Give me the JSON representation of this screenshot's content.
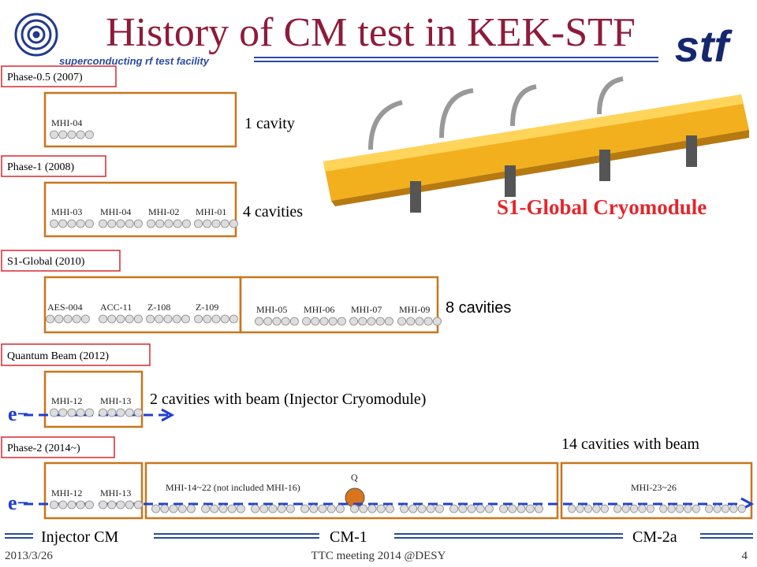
{
  "header": {
    "title": "History of CM test in KEK-STF",
    "subtitle": "superconducting rf test facility",
    "logo_text": "stf"
  },
  "phases": [
    {
      "label": "Phase-0.5 (2007)",
      "cavities": [
        "MHI-04"
      ],
      "note": "1 cavity"
    },
    {
      "label": "Phase-1 (2008)",
      "cavities": [
        "MHI-03",
        "MHI-04",
        "MHI-02",
        "MHI-01"
      ],
      "note": "4 cavities"
    },
    {
      "label": "S1-Global (2010)",
      "cavities": [
        "AES-004",
        "ACC-11",
        "Z-108",
        "Z-109",
        "MHI-05",
        "MHI-06",
        "MHI-07",
        "MHI-09"
      ],
      "note": "8 cavities"
    },
    {
      "label": "Quantum Beam (2012)",
      "cavities": [
        "MHI-12",
        "MHI-13"
      ],
      "note": "2 cavities with beam (Injector Cryomodule)",
      "beam": "e−"
    },
    {
      "label": "Phase-2 (2014~)",
      "cavities": [
        "MHI-12",
        "MHI-13"
      ],
      "cm1": "MHI-14~22 (not included MHI-16)",
      "quad": "Q",
      "cm2": "MHI-23~26",
      "note": "14 cavities with beam",
      "beam": "e−"
    }
  ],
  "photo_caption": "S1-Global Cryomodule",
  "sections": [
    "Injector CM",
    "CM-1",
    "CM-2a"
  ],
  "footer": {
    "date": "2013/3/26",
    "meeting": "TTC meeting 2014 @DESY",
    "page": "4"
  }
}
